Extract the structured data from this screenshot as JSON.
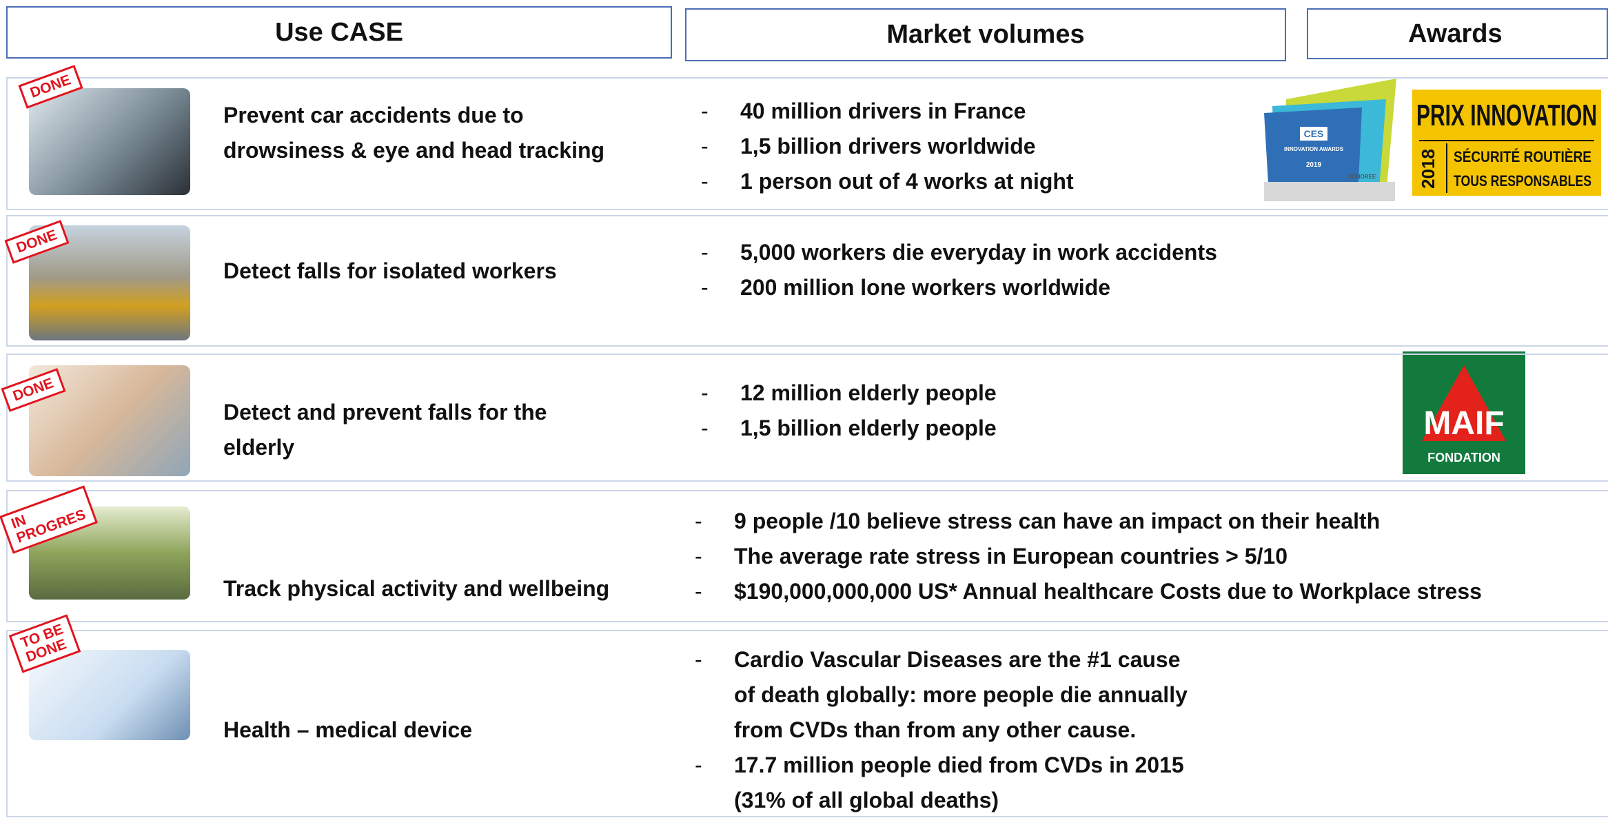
{
  "header": {
    "columns": [
      "Use CASE",
      "Market volumes",
      "Awards"
    ]
  },
  "rows": [
    {
      "status": [
        "DONE"
      ],
      "use_case": [
        "Prevent car accidents due to",
        "drowsiness & eye and head tracking"
      ],
      "market": [
        [
          "40 million drivers in France"
        ],
        [
          "1,5 billion drivers worldwide"
        ],
        [
          "1 person out of 4 works at night"
        ]
      ]
    },
    {
      "status": [
        "DONE"
      ],
      "use_case": [
        "Detect falls for isolated workers"
      ],
      "market": [
        [
          "5,000 workers die everyday in work accidents"
        ],
        [
          "200 million lone workers worldwide"
        ]
      ]
    },
    {
      "status": [
        "DONE"
      ],
      "use_case": [
        "Detect and prevent falls for the",
        "elderly"
      ],
      "market": [
        [
          "12 million elderly people"
        ],
        [
          "1,5 billion elderly people"
        ]
      ]
    },
    {
      "status": [
        "IN",
        "PROGRES"
      ],
      "use_case": [
        "Track physical activity and wellbeing"
      ],
      "market": [
        [
          "9 people /10 believe stress can have an impact on their health"
        ],
        [
          "The average rate stress in European countries > 5/10"
        ],
        [
          "$190,000,000,000 US* Annual healthcare Costs due to Workplace stress"
        ]
      ]
    },
    {
      "status": [
        "TO BE",
        "DONE"
      ],
      "use_case": [
        "Health – medical device"
      ],
      "market": [
        [
          "Cardio Vascular Diseases are the #1 cause",
          "of death globally: more people die annually",
          "from CVDs than from any other cause."
        ],
        [
          "17.7 million people died from CVDs in 2015",
          "(31% of all global deaths)"
        ]
      ]
    }
  ],
  "awards": {
    "ces": {
      "logo": "CES",
      "name": "INNOVATION AWARDS",
      "year": "2019",
      "badge": "HONOREE"
    },
    "prix": {
      "title": "PRIX INNOVATION",
      "year": "2018",
      "line1": "SÉCURITÉ ROUTIÈRE",
      "line2": "TOUS RESPONSABLES"
    },
    "maif": {
      "name": "MAIF",
      "sub": "FONDATION"
    }
  }
}
